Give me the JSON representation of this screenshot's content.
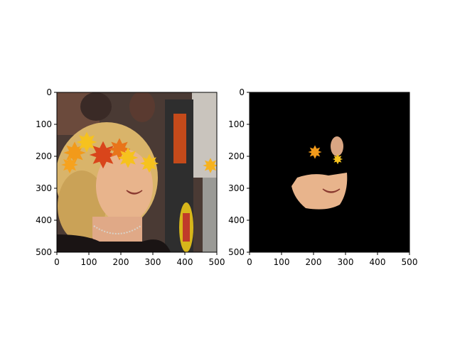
{
  "chart_data": [
    {
      "type": "image",
      "panel": "left",
      "content": "Photo of a smiling blonde woman with autumn maple-leaf overlay covering the upper face",
      "xlim": [
        0,
        500
      ],
      "ylim": [
        500,
        0
      ],
      "xticks": [
        0,
        100,
        200,
        300,
        400,
        500
      ],
      "yticks": [
        0,
        100,
        200,
        300,
        400,
        500
      ],
      "xtick_labels": [
        "0",
        "100",
        "200",
        "300",
        "400",
        "500"
      ],
      "ytick_labels": [
        "0",
        "100",
        "200",
        "300",
        "400",
        "500"
      ]
    },
    {
      "type": "image",
      "panel": "right",
      "content": "Masked version: black background with only lower face region and a few leaf fragments visible",
      "xlim": [
        0,
        500
      ],
      "ylim": [
        500,
        0
      ],
      "xticks": [
        0,
        100,
        200,
        300,
        400,
        500
      ],
      "yticks": [
        0,
        100,
        200,
        300,
        400,
        500
      ],
      "xtick_labels": [
        "0",
        "100",
        "200",
        "300",
        "400",
        "500"
      ],
      "ytick_labels": [
        "0",
        "100",
        "200",
        "300",
        "400",
        "500"
      ]
    }
  ],
  "colors": {
    "mask_background": "#000000",
    "skin": "#e8b48c",
    "hair": "#d9b46a",
    "leaf_orange": "#f29a1a",
    "leaf_red": "#d9451b",
    "leaf_yellow": "#f6c21e"
  }
}
